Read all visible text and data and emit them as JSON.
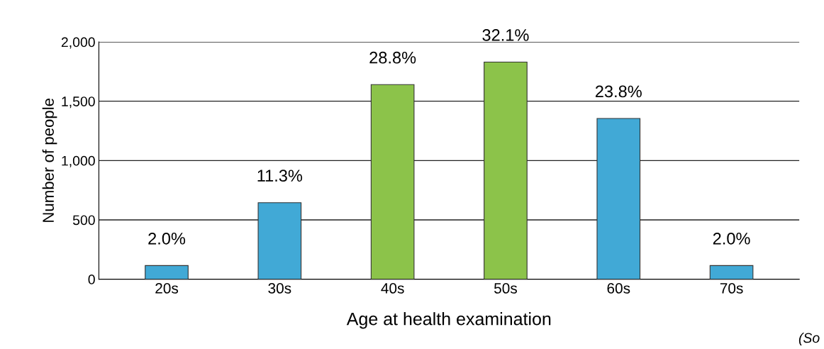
{
  "chart_data": {
    "type": "bar",
    "xlabel": "Age at health examination",
    "ylabel": "Number of people",
    "categories": [
      "20s",
      "30s",
      "40s",
      "50s",
      "60s",
      "70s"
    ],
    "values": [
      115,
      645,
      1640,
      1830,
      1355,
      115
    ],
    "colors": [
      "#41a9d6",
      "#41a9d6",
      "#8cc34a",
      "#8cc34a",
      "#41a9d6",
      "#41a9d6"
    ],
    "ylim": [
      0,
      2000
    ],
    "yticks": [
      0,
      {
        "value": 500,
        "label": "500"
      },
      {
        "value": 1000,
        "label": "1,000"
      },
      {
        "value": 1500,
        "label": "1,500"
      },
      {
        "value": 2000,
        "label": "2,000"
      }
    ],
    "grid": "y",
    "annotations": [
      {
        "text": "2.0%",
        "x": "20s",
        "y": 115
      },
      {
        "text": "11.3%",
        "x": "30s",
        "y": 645
      },
      {
        "text": "28.8%",
        "x": "40s",
        "y": 1640
      },
      {
        "text": "32.1%",
        "x": "50s",
        "y": 1830
      },
      {
        "text": "23.8%",
        "x": "60s",
        "y": 1355
      },
      {
        "text": "2.0%",
        "x": "70s",
        "y": 115
      },
      "(So"
    ]
  }
}
